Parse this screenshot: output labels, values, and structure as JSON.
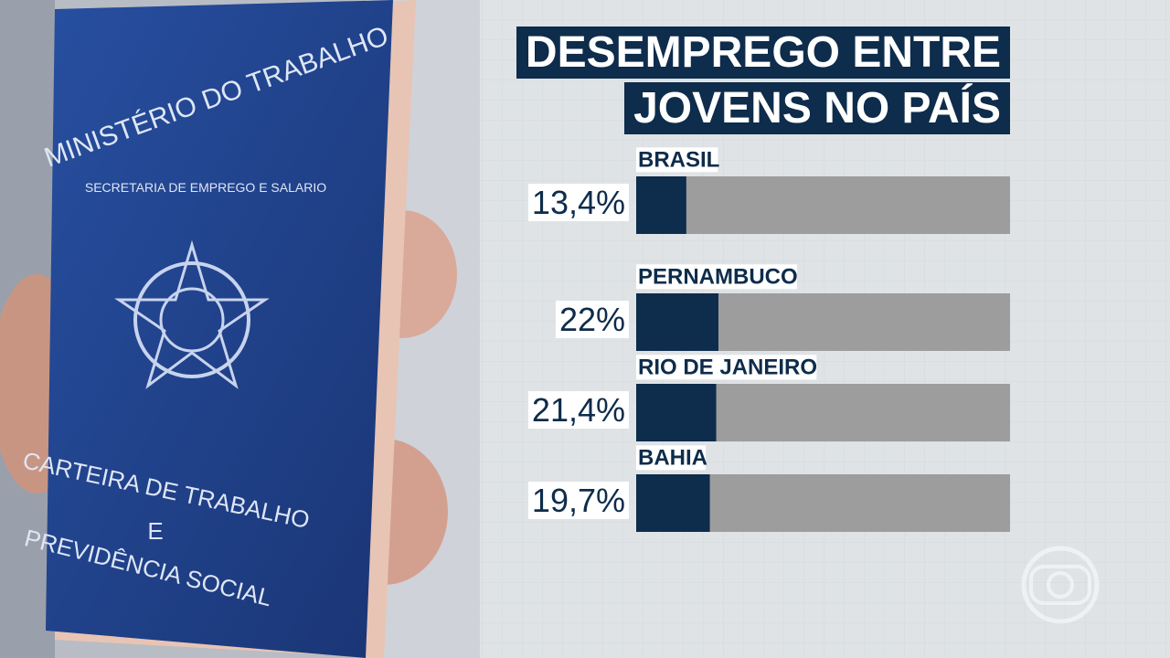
{
  "chart_data": {
    "type": "bar",
    "orientation": "horizontal",
    "title": "DESEMPREGO ENTRE JOVENS NO PAÍS",
    "categories": [
      "BRASIL",
      "PERNAMBUCO",
      "RIO DE JANEIRO",
      "BAHIA"
    ],
    "values": [
      13.4,
      22,
      21.4,
      19.7
    ],
    "value_labels": [
      "13,4%",
      "22%",
      "21,4%",
      "19,7%"
    ],
    "color": "#0e2c4b",
    "track_color": "#9d9d9d",
    "xlim": [
      0,
      100
    ]
  },
  "photo": {
    "ministry": "MINISTÉRIO DO TRABALHO",
    "secretariat": "SECRETARIA DE EMPREGO E SALARIO",
    "document": "CARTEIRA DE TRABALHO",
    "conjunction": "E",
    "social": "PREVIDÊNCIA SOCIAL"
  }
}
